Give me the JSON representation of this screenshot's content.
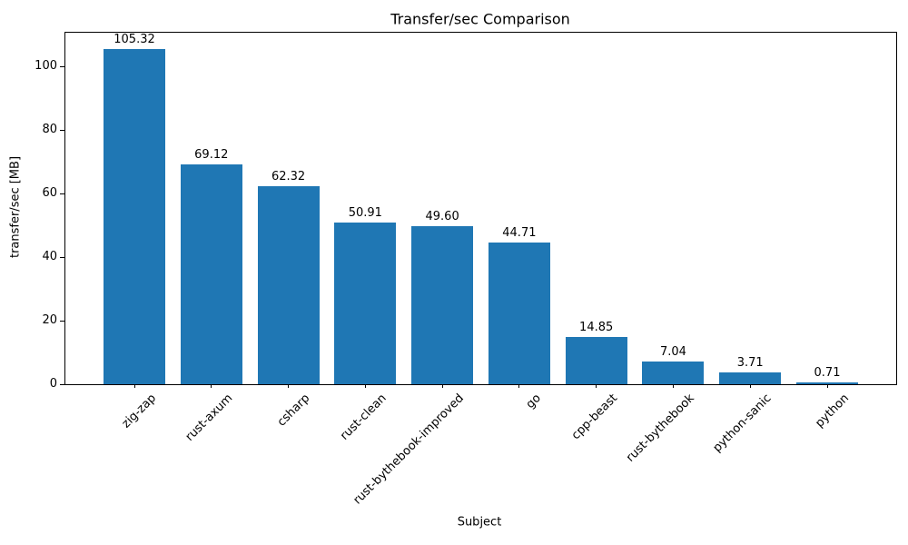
{
  "chart_data": {
    "type": "bar",
    "title": "Transfer/sec Comparison",
    "xlabel": "Subject",
    "ylabel": "transfer/sec [MB]",
    "categories": [
      "zig-zap",
      "rust-axum",
      "csharp",
      "rust-clean",
      "rust-bythebook-improved",
      "go",
      "cpp-beast",
      "rust-bythebook",
      "python-sanic",
      "python"
    ],
    "values": [
      105.32,
      69.12,
      62.32,
      50.91,
      49.6,
      44.71,
      14.85,
      7.04,
      3.71,
      0.71
    ],
    "value_labels": [
      "105.32",
      "69.12",
      "62.32",
      "50.91",
      "49.60",
      "44.71",
      "14.85",
      "7.04",
      "3.71",
      "0.71"
    ],
    "yticks": [
      0,
      20,
      40,
      60,
      80,
      100
    ],
    "ylim": [
      0,
      110.59
    ],
    "xtick_label_rotation": 45,
    "grid": false,
    "legend": null,
    "bar_color": "#1f77b4",
    "text_color": "#000000",
    "spine_color": "#000000",
    "background_color": "#ffffff"
  }
}
